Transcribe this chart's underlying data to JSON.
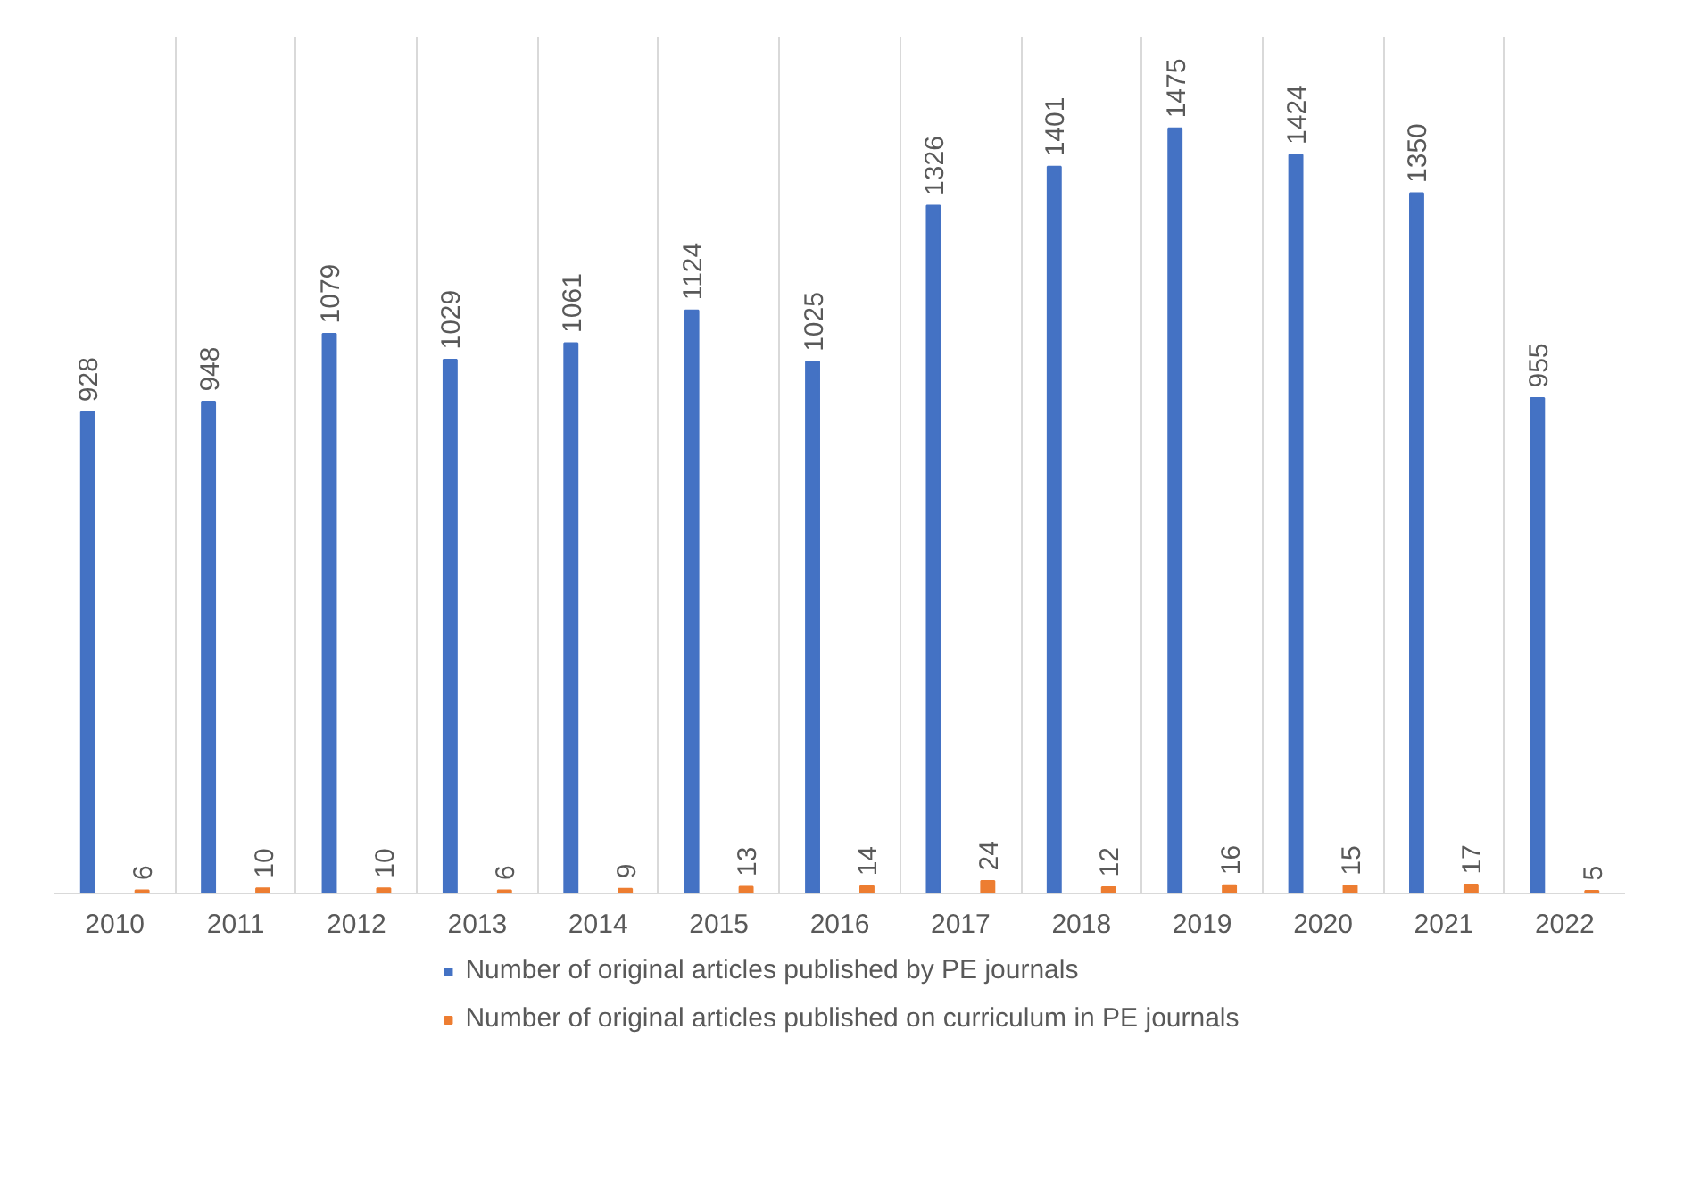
{
  "chart_data": {
    "type": "bar",
    "categories": [
      "2010",
      "2011",
      "2012",
      "2013",
      "2014",
      "2015",
      "2016",
      "2017",
      "2018",
      "2019",
      "2020",
      "2021",
      "2022"
    ],
    "series": [
      {
        "name": "Number of original articles published by PE journals",
        "color": "#4472c4",
        "values": [
          928,
          948,
          1079,
          1029,
          1061,
          1124,
          1025,
          1326,
          1401,
          1475,
          1424,
          1350,
          955
        ]
      },
      {
        "name": "Number of original articles published on curriculum in PE journals",
        "color": "#ed7d31",
        "values": [
          6,
          10,
          10,
          6,
          9,
          13,
          14,
          24,
          12,
          16,
          15,
          17,
          5
        ]
      }
    ],
    "data_labels": true,
    "grid": "x",
    "legend": "bottom"
  }
}
